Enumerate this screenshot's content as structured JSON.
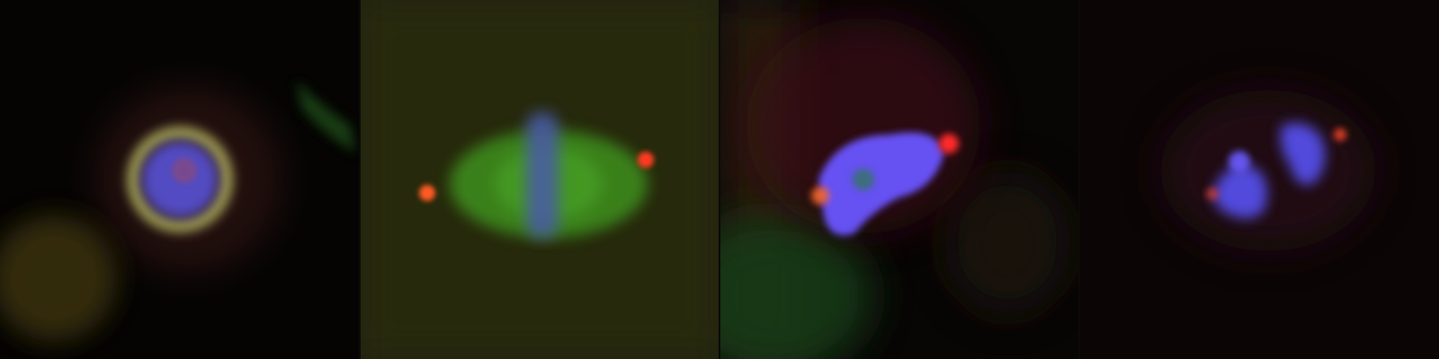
{
  "figure": {
    "panel_count": 4,
    "panels": [
      {
        "id": "panel-1",
        "channels": [
          "dna-blue",
          "tubulin-green",
          "centrosome-red"
        ]
      },
      {
        "id": "panel-2",
        "channels": [
          "dna-blue",
          "spindle-green",
          "centrosome-red"
        ]
      },
      {
        "id": "panel-3",
        "channels": [
          "dna-blue",
          "tubulin-green",
          "centrosome-red"
        ]
      },
      {
        "id": "panel-4",
        "channels": [
          "dna-blue",
          "centrosome-red"
        ]
      }
    ]
  },
  "colors": {
    "background": "#000000",
    "dna": "#5a55ff",
    "tubulin": "#3fbf2a",
    "centrosome": "#ff3a2a"
  }
}
